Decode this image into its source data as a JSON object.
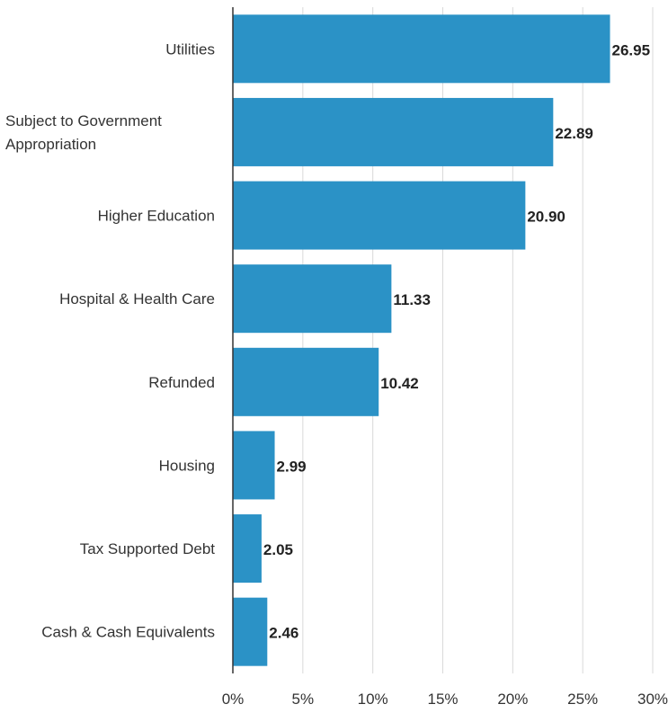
{
  "chart_data": {
    "type": "bar",
    "orientation": "horizontal",
    "categories": [
      [
        "Utilities"
      ],
      [
        "Subject to Government",
        "Appropriation"
      ],
      [
        "Higher Education"
      ],
      [
        "Hospital & Health Care"
      ],
      [
        "Refunded"
      ],
      [
        "Housing"
      ],
      [
        "Tax Supported Debt"
      ],
      [
        "Cash & Cash Equivalents"
      ]
    ],
    "values": [
      26.95,
      22.89,
      20.9,
      11.33,
      10.42,
      2.99,
      2.05,
      2.46
    ],
    "value_labels": [
      "26.95",
      "22.89",
      "20.90",
      "11.33",
      "10.42",
      "2.99",
      "2.05",
      "2.46"
    ],
    "xlim": [
      0,
      30
    ],
    "x_ticks": [
      0,
      5,
      10,
      15,
      20,
      25,
      30
    ],
    "x_tick_labels": [
      "0%",
      "5%",
      "10%",
      "15%",
      "20%",
      "25%",
      "30%"
    ],
    "grid": "vertical",
    "legend": "none",
    "bar_color": "#2b92c6"
  }
}
